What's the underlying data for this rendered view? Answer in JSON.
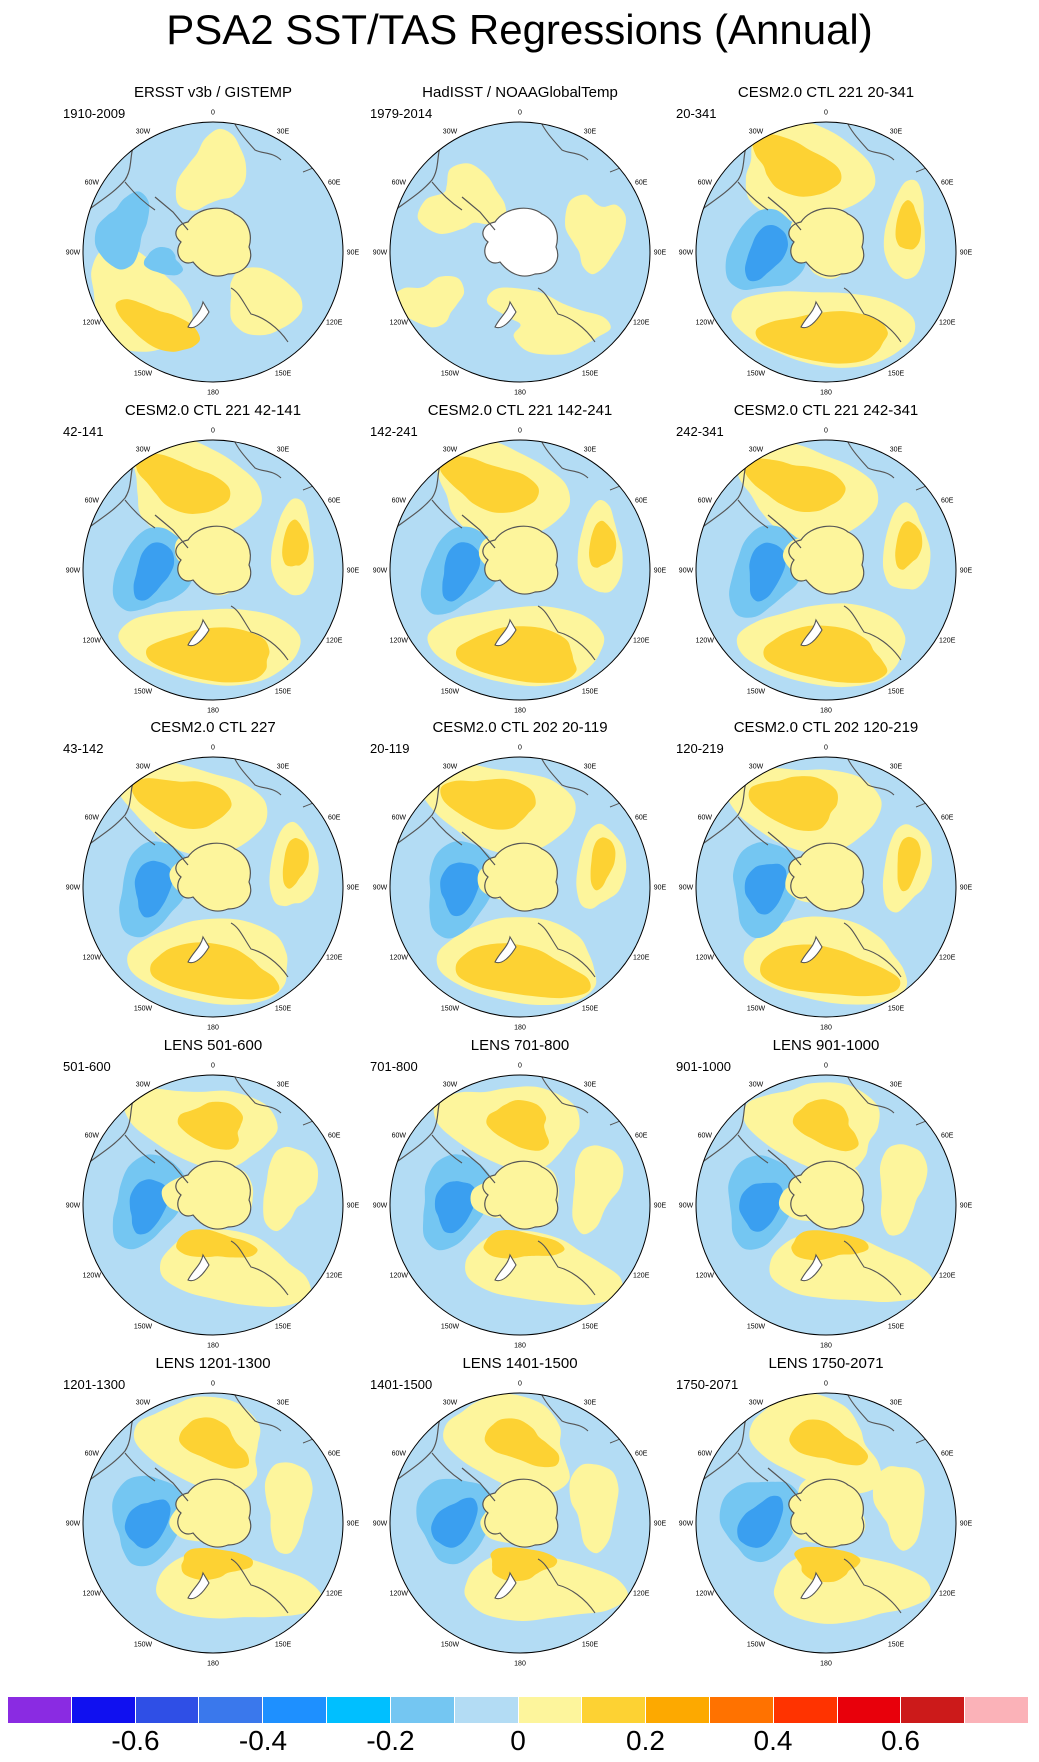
{
  "figure": {
    "title": "PSA2 SST/TAS Regressions (Annual)"
  },
  "longitude_labels": [
    "0",
    "30E",
    "60E",
    "90E",
    "120E",
    "150E",
    "180",
    "150W",
    "120W",
    "90W",
    "60W",
    "30W"
  ],
  "panels": [
    {
      "title": "ERSST v3b / GISTEMP",
      "period": "1910-2009",
      "variant": "obs1"
    },
    {
      "title": "HadISST / NOAAGlobalTemp",
      "period": "1979-2014",
      "variant": "obs2"
    },
    {
      "title": "CESM2.0 CTL 221 20-341",
      "period": "20-341",
      "variant": "model"
    },
    {
      "title": "CESM2.0 CTL 221 42-141",
      "period": "42-141",
      "variant": "model"
    },
    {
      "title": "CESM2.0 CTL 221 142-241",
      "period": "142-241",
      "variant": "model"
    },
    {
      "title": "CESM2.0 CTL 221 242-341",
      "period": "242-341",
      "variant": "model"
    },
    {
      "title": "CESM2.0 CTL 227",
      "period": "43-142",
      "variant": "model"
    },
    {
      "title": "CESM2.0 CTL 202 20-119",
      "period": "20-119",
      "variant": "model"
    },
    {
      "title": "CESM2.0 CTL 202 120-219",
      "period": "120-219",
      "variant": "model"
    },
    {
      "title": "LENS 501-600",
      "period": "501-600",
      "variant": "lens"
    },
    {
      "title": "LENS 701-800",
      "period": "701-800",
      "variant": "lens"
    },
    {
      "title": "LENS 901-1000",
      "period": "901-1000",
      "variant": "lens"
    },
    {
      "title": "LENS 1201-1300",
      "period": "1201-1300",
      "variant": "lens"
    },
    {
      "title": "LENS 1401-1500",
      "period": "1401-1500",
      "variant": "lens"
    },
    {
      "title": "LENS 1750-2071",
      "period": "1750-2071",
      "variant": "lens"
    }
  ],
  "colorbar": {
    "colors": [
      "#8a2be2",
      "#1010f0",
      "#2f4fe6",
      "#3a78ec",
      "#1e90ff",
      "#00bfff",
      "#74c6f2",
      "#b3dcf4",
      "#fdf59c",
      "#fdd233",
      "#fda900",
      "#ff7200",
      "#ff3300",
      "#e8000b",
      "#cc1a1a",
      "#fbb2b8"
    ],
    "labels": [
      "-0.6",
      "-0.4",
      "-0.2",
      "0",
      "0.2",
      "0.4",
      "0.6"
    ]
  },
  "palette": {
    "light_blue": "#b3dcf4",
    "mid_blue": "#74c6f2",
    "blue": "#3a9ff0",
    "deep_blue": "#1e90ff",
    "light_yellow": "#fdf59c",
    "yellow": "#fdd233",
    "orange": "#fdb010",
    "land": "#ffffff",
    "coast": "#555555"
  }
}
